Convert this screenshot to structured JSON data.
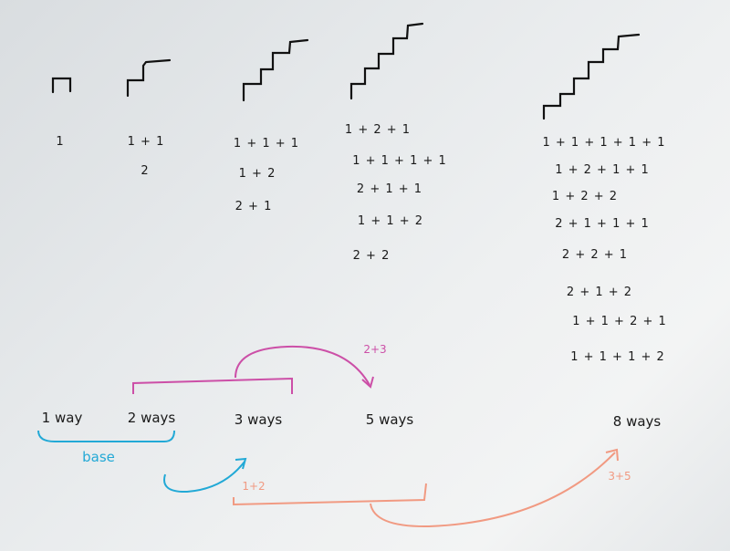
{
  "columns": [
    {
      "sums": [
        "1"
      ]
    },
    {
      "sums": [
        "1 + 1",
        "2"
      ]
    },
    {
      "sums": [
        "1 + 1 + 1",
        "1 + 2",
        "2 + 1"
      ]
    },
    {
      "sums": [
        "1 + 2 + 1",
        "1 + 1 + 1 + 1",
        "2 + 1 + 1",
        "1 + 1 + 2",
        "2 + 2"
      ]
    },
    {
      "sums": [
        "1 + 1 + 1 + 1 + 1",
        "1 + 2 + 1 + 1",
        "1 + 2 + 2",
        "2 + 1 + 1 + 1",
        "2 + 2 + 1",
        "2 + 1 + 2",
        "1 + 1 + 2 + 1",
        "1 + 1 + 1 + 2"
      ]
    }
  ],
  "ways": [
    "1 way",
    "2 ways",
    "3 ways",
    "5 ways",
    "8 ways"
  ],
  "annotations": {
    "base": "base",
    "pink_sum": "2+3",
    "blue_sum": "1+2",
    "orange_sum": "3+5"
  },
  "colors": {
    "ink": "#1a1a1a",
    "pink": "#cc4fa7",
    "blue": "#22a9d6",
    "orange": "#f19a82"
  }
}
